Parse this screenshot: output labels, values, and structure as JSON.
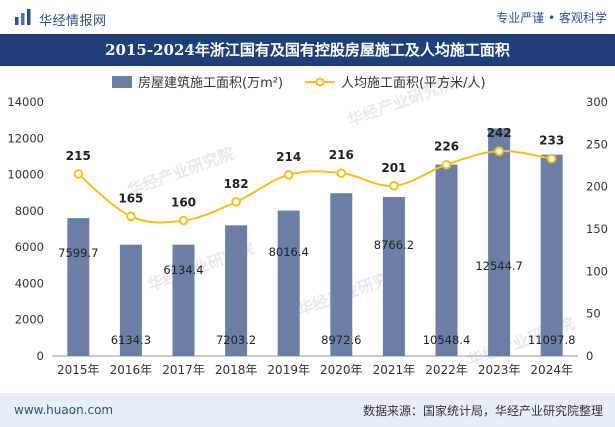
{
  "header": {
    "brand_name": "华经情报网",
    "tagline": "专业严谨 • 客观科学"
  },
  "footer": {
    "website": "www.huaon.com",
    "source": "数据来源：国家统计局，华经产业研究院整理"
  },
  "watermark": "华经产业研究院",
  "colors": {
    "bar": "#6b7fa6",
    "line": "#f5c024",
    "title_bg": "#1e3f78",
    "brand": "#2d5088"
  },
  "chart_data": {
    "type": "bar+line",
    "title": "2015-2024年浙江国有及国有控股房屋施工及人均施工面积",
    "categories": [
      "2015年",
      "2016年",
      "2017年",
      "2018年",
      "2019年",
      "2020年",
      "2021年",
      "2022年",
      "2023年",
      "2024年"
    ],
    "series": [
      {
        "name": "房屋建筑施工面积(万m²)",
        "type": "bar",
        "axis": "left",
        "values": [
          7599.7,
          6134.3,
          6134.4,
          7203.2,
          8016.4,
          8972.6,
          8766.2,
          10548.4,
          12544.7,
          11097.8
        ],
        "labels": [
          "7599.7",
          "6134.3",
          "6134.4",
          "7203.2",
          "8016.4",
          "8972.6",
          "8766.2",
          "10548.4",
          "12544.7",
          "11097.8"
        ]
      },
      {
        "name": "人均施工面积(平方米/人)",
        "type": "line",
        "axis": "right",
        "values": [
          215,
          165,
          160,
          182,
          214,
          216,
          201,
          226,
          242,
          233
        ]
      }
    ],
    "y_left": {
      "min": 0,
      "max": 14000,
      "ticks": [
        0,
        2000,
        4000,
        6000,
        8000,
        10000,
        12000,
        14000
      ]
    },
    "y_right": {
      "min": 0,
      "max": 300,
      "ticks": [
        0,
        50,
        100,
        150,
        200,
        250,
        300
      ]
    },
    "legend_position": "top"
  }
}
